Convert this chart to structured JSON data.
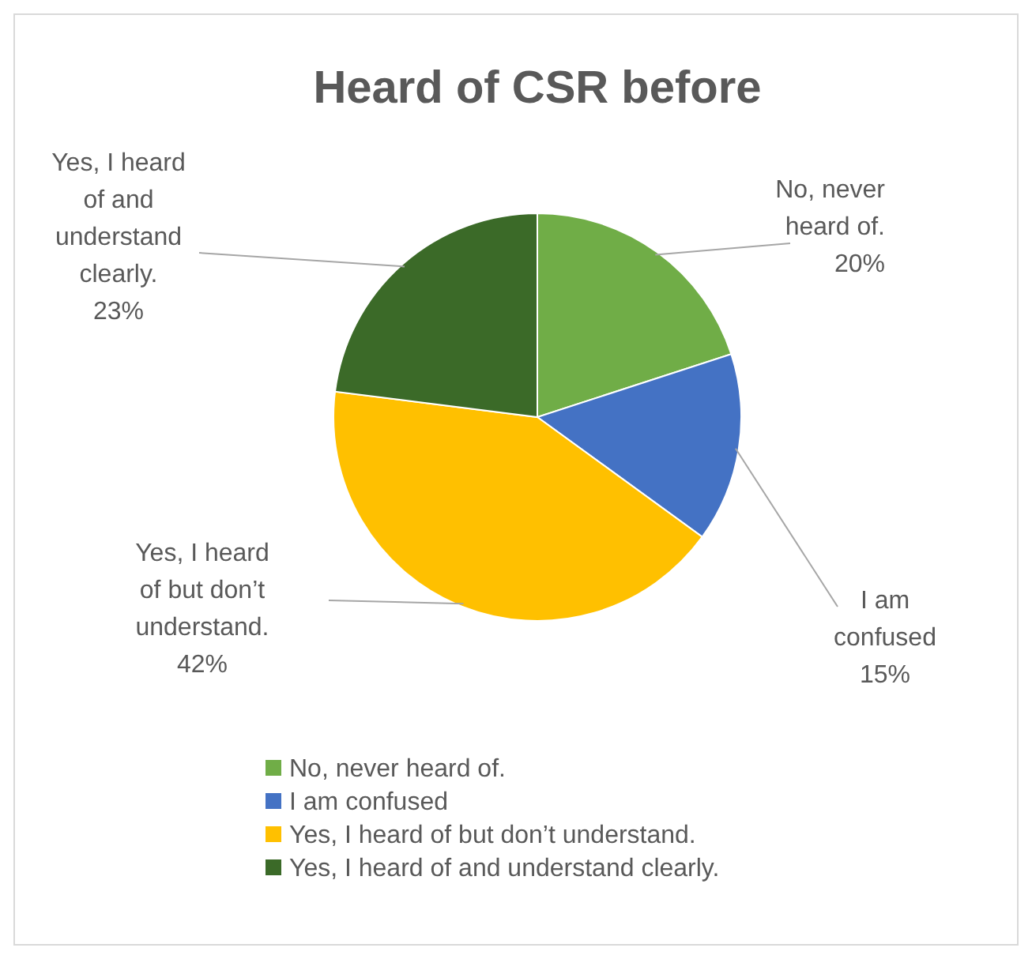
{
  "chart_data": {
    "type": "pie",
    "title": "Heard of CSR before",
    "categories": [
      "No, never heard of.",
      "I am confused",
      "Yes, I heard of but don’t understand.",
      "Yes, I heard of and understand clearly."
    ],
    "values": [
      20,
      15,
      42,
      23
    ],
    "colors": [
      "#70ad47",
      "#4472c4",
      "#ffc000",
      "#3b6a28"
    ],
    "value_labels": [
      "20%",
      "15%",
      "42%",
      "23%"
    ],
    "legend": "bottom"
  }
}
